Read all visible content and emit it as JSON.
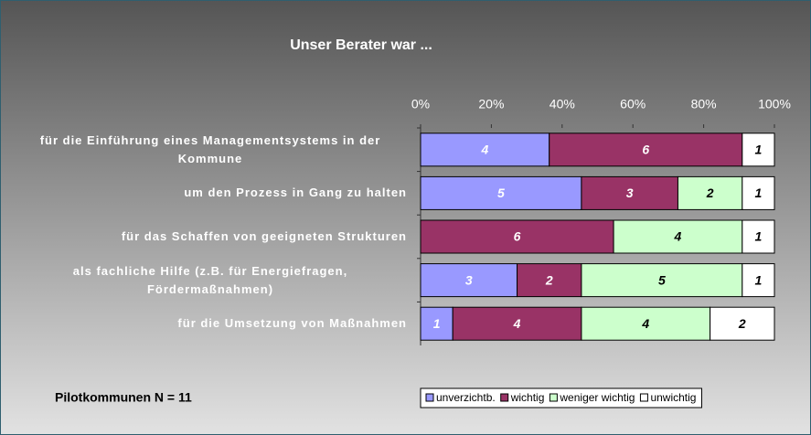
{
  "chart_data": {
    "type": "bar",
    "orientation": "horizontal",
    "stacking": "percent",
    "title": "Unser Berater war ...",
    "note": "Pilotkommunen N = 11",
    "categories": [
      "für die Einführung eines Managementsystems in der Kommune",
      "um den Prozess in Gang zu halten",
      "für das Schaffen von geeigneten Strukturen",
      "als fachliche Hilfe (z.B. für Energiefragen, Fördermaßnahmen)",
      "für die Umsetzung von Maßnahmen"
    ],
    "series": [
      {
        "name": "unverzichtb.",
        "color": "#9999ff",
        "label_color": "#ffffff",
        "values": [
          4,
          5,
          0,
          3,
          1
        ]
      },
      {
        "name": "wichtig",
        "color": "#993366",
        "label_color": "#ffffff",
        "values": [
          6,
          3,
          6,
          2,
          4
        ]
      },
      {
        "name": "weniger wichtig",
        "color": "#ccffcc",
        "label_color": "#000000",
        "values": [
          0,
          2,
          4,
          5,
          4
        ]
      },
      {
        "name": "unwichtig",
        "color": "#ffffff",
        "label_color": "#000000",
        "values": [
          1,
          1,
          1,
          1,
          2
        ]
      }
    ],
    "xlim": [
      0,
      100
    ],
    "xticks": [
      {
        "value": 0,
        "label": "0%"
      },
      {
        "value": 20,
        "label": "20%"
      },
      {
        "value": 40,
        "label": "40%"
      },
      {
        "value": 60,
        "label": "60%"
      },
      {
        "value": 80,
        "label": "80%"
      },
      {
        "value": 100,
        "label": "100%"
      }
    ],
    "legend": "bottom-right"
  }
}
